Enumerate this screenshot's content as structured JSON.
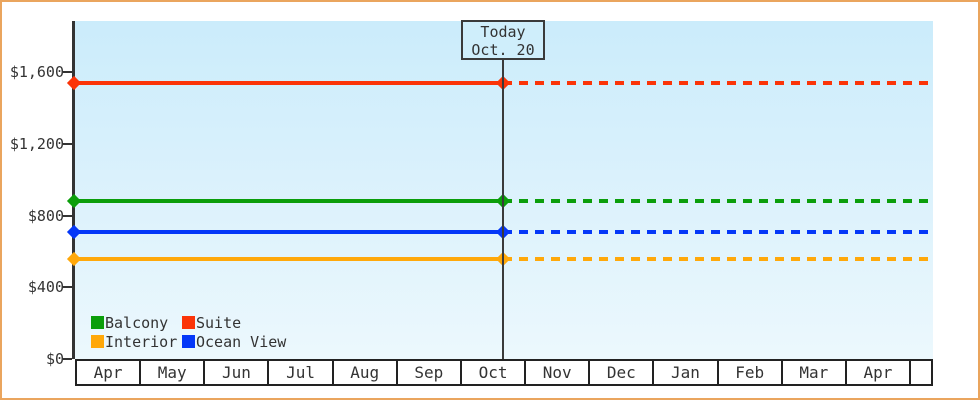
{
  "chart_data": {
    "type": "line",
    "title": "",
    "xlabel": "",
    "ylabel": "",
    "x_categories": [
      "Apr",
      "May",
      "Jun",
      "Jul",
      "Aug",
      "Sep",
      "Oct",
      "Nov",
      "Dec",
      "Jan",
      "Feb",
      "Mar",
      "Apr"
    ],
    "y_axis": {
      "ticks": [
        {
          "value": 1600,
          "label": "$1,600"
        },
        {
          "value": 1200,
          "label": "$1,200"
        },
        {
          "value": 800,
          "label": "$800"
        },
        {
          "value": 400,
          "label": "$400"
        },
        {
          "value": 0,
          "label": "$0"
        }
      ],
      "ylim": [
        0,
        1600
      ]
    },
    "today_marker": {
      "line1": "Today",
      "line2": "Oct. 20",
      "position_month": "Oct",
      "note": "lines are solid before today, dashed projection after today"
    },
    "series": [
      {
        "name": "Suite",
        "color": "#fb3408",
        "value": 1540
      },
      {
        "name": "Balcony",
        "color": "#0b9e0b",
        "value": 880
      },
      {
        "name": "Ocean View",
        "color": "#0437f8",
        "value": 710
      },
      {
        "name": "Interior",
        "color": "#ffa80a",
        "value": 555
      }
    ],
    "legend_order": [
      "Balcony",
      "Suite",
      "Interior",
      "Ocean View"
    ],
    "legend_position": "bottom-left-inside",
    "grid": false
  },
  "colors": {
    "frame_border": "#eaa55e",
    "axis": "#333333",
    "plot_bg_top": "#cbecfb",
    "plot_bg_bottom": "#ecf8fd",
    "month_band_border": "#222222",
    "today_box_bg": "#cfeefb"
  }
}
